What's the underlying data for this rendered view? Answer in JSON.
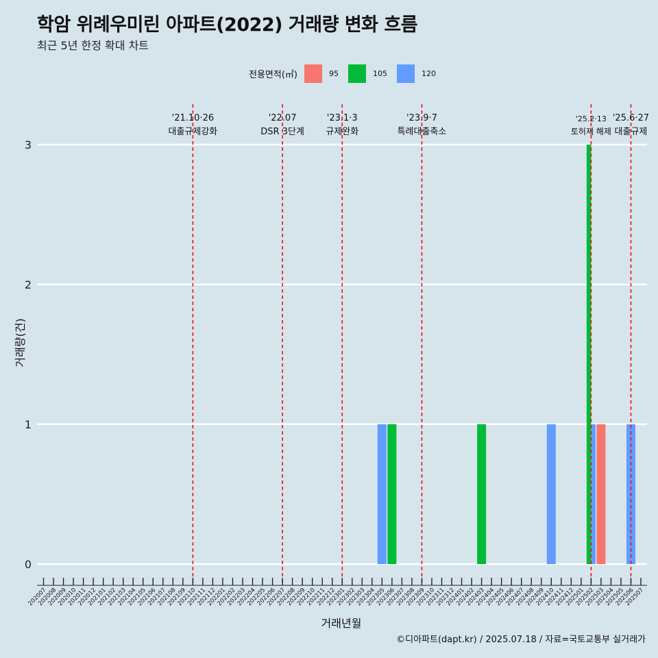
{
  "title": "학암 위례우미린 아파트(2022) 거래량 변화 흐름",
  "subtitle": "최근 5년 한정 확대 차트",
  "caption": "©디아파트(dapt.kr) / 2025.07.18 / 자료=국토교통부 실거래가",
  "legend": {
    "title": "전용면적(㎡)",
    "items": [
      {
        "label": "95",
        "color": "#f8766d"
      },
      {
        "label": "105",
        "color": "#00ba38"
      },
      {
        "label": "120",
        "color": "#619cff"
      }
    ]
  },
  "chart_data": {
    "type": "bar",
    "title": "학암 위례우미린 아파트(2022) 거래량 변화 흐름",
    "subtitle": "최근 5년 한정 확대 차트",
    "xlabel": "거래년월",
    "ylabel": "거래량(건)",
    "ylim": [
      0,
      3
    ],
    "yticks": [
      0,
      1,
      2,
      3
    ],
    "grid": true,
    "legend_position": "top",
    "categories": [
      "202007",
      "202008",
      "202009",
      "202010",
      "202011",
      "202012",
      "202101",
      "202102",
      "202103",
      "202104",
      "202105",
      "202106",
      "202107",
      "202108",
      "202109",
      "202110",
      "202111",
      "202112",
      "202201",
      "202202",
      "202203",
      "202204",
      "202205",
      "202206",
      "202207",
      "202208",
      "202209",
      "202210",
      "202211",
      "202212",
      "202301",
      "202302",
      "202303",
      "202304",
      "202305",
      "202306",
      "202307",
      "202308",
      "202309",
      "202310",
      "202311",
      "202312",
      "202401",
      "202402",
      "202403",
      "202404",
      "202405",
      "202406",
      "202407",
      "202408",
      "202409",
      "202410",
      "202411",
      "202412",
      "202501",
      "202502",
      "202503",
      "202504",
      "202505",
      "202506",
      "202507"
    ],
    "series": [
      {
        "name": "95",
        "color": "#f8766d",
        "points": [
          {
            "x": "202503",
            "y": 1
          }
        ]
      },
      {
        "name": "105",
        "color": "#00ba38",
        "points": [
          {
            "x": "202306",
            "y": 1
          },
          {
            "x": "202403",
            "y": 1
          },
          {
            "x": "202502",
            "y": 3
          }
        ]
      },
      {
        "name": "120",
        "color": "#619cff",
        "points": [
          {
            "x": "202305",
            "y": 1
          },
          {
            "x": "202410",
            "y": 1
          },
          {
            "x": "202502",
            "y": 1
          },
          {
            "x": "202506",
            "y": 1
          }
        ]
      }
    ],
    "events": [
      {
        "x": "202110",
        "date": "'21.10·26",
        "label": "대출규제강화"
      },
      {
        "x": "202207",
        "date": "'22.07",
        "label": "DSR 3단계"
      },
      {
        "x": "202301",
        "date": "'23.1·3",
        "label": "규제완화"
      },
      {
        "x": "202309",
        "date": "'23.9·7",
        "label": "특례대출축소"
      },
      {
        "x": "202502",
        "date": "'25.2·13",
        "label": "토허제 해제"
      },
      {
        "x": "202506",
        "date": "'25.6·27",
        "label": "대출규제"
      }
    ]
  }
}
